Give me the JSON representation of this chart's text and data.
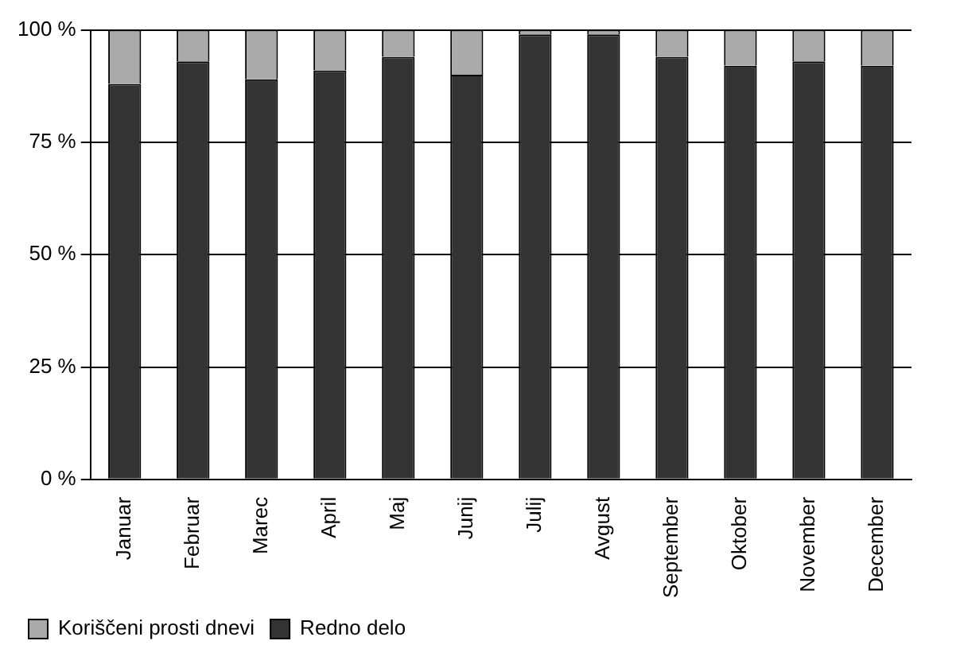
{
  "chart_data": {
    "type": "bar",
    "stacked": true,
    "categories": [
      "Januar",
      "Februar",
      "Marec",
      "April",
      "Maj",
      "Junij",
      "Julij",
      "Avgust",
      "September",
      "Oktober",
      "November",
      "December"
    ],
    "series": [
      {
        "name": "Redno delo",
        "color": "#333333",
        "values": [
          88,
          93,
          89,
          91,
          94,
          90,
          99,
          99,
          94,
          92,
          93,
          92
        ]
      },
      {
        "name": "Koriščeni prosti dnevi",
        "color": "#aaaaaa",
        "values": [
          12,
          7,
          11,
          9,
          6,
          10,
          1,
          1,
          6,
          8,
          7,
          8
        ]
      }
    ],
    "ylim": [
      0,
      100
    ],
    "yticks": [
      {
        "value": 0,
        "label": "0 %"
      },
      {
        "value": 25,
        "label": "25 %"
      },
      {
        "value": 50,
        "label": "50 %"
      },
      {
        "value": 75,
        "label": "75 %"
      },
      {
        "value": 100,
        "label": "100 %"
      }
    ],
    "grid": "y",
    "legend": "bottom left"
  }
}
